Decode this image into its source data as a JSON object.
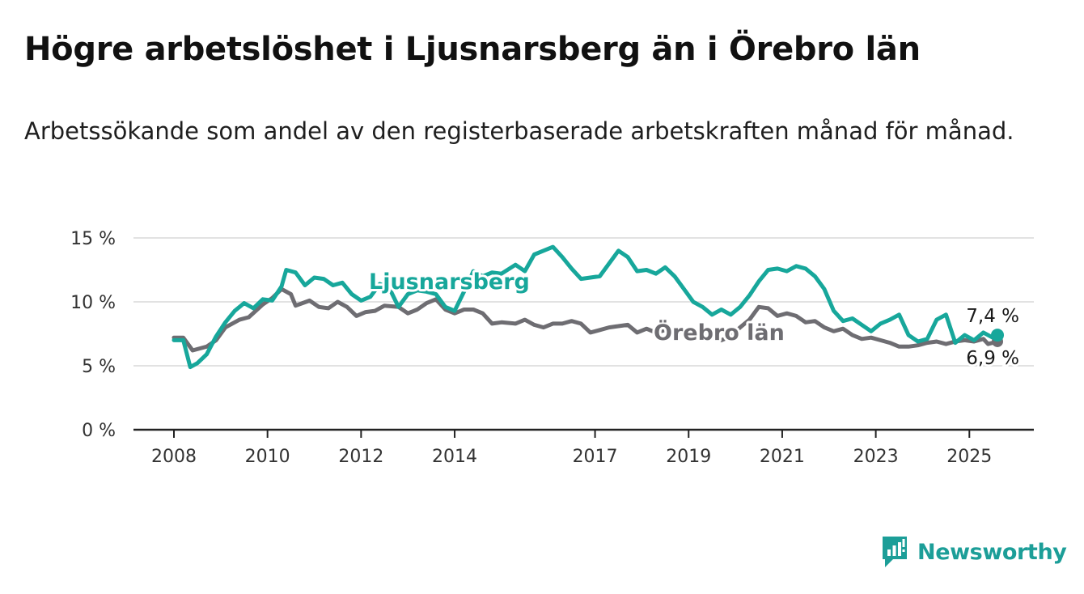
{
  "title": "Högre arbetslöshet i Ljusnarsberg än i Örebro län",
  "subtitle": "Arbetssökande som andel av den registerbaserade arbetskraften månad för månad.",
  "brand": {
    "name": "Newsworthy",
    "icon": "bar-chart-icon",
    "color": "#1c9e98"
  },
  "chart_data": {
    "type": "line",
    "ylim": [
      0,
      15
    ],
    "y_ticks": [
      0,
      5,
      10,
      15
    ],
    "y_tick_labels": [
      "0 %",
      "5 %",
      "10 %",
      "15 %"
    ],
    "x_range": [
      2008.0,
      2025.6
    ],
    "x_ticks": [
      2008,
      2010,
      2012,
      2014,
      2017,
      2019,
      2021,
      2023,
      2025
    ],
    "x_tick_labels": [
      "2008",
      "2010",
      "2012",
      "2014",
      "2017",
      "2019",
      "2021",
      "2023",
      "2025"
    ],
    "grid": true,
    "series": [
      {
        "name": "Örebro län",
        "color": "#6e6d72",
        "end_label": "6,9 %",
        "points": [
          [
            2008.0,
            7.2
          ],
          [
            2008.2,
            7.2
          ],
          [
            2008.4,
            6.2
          ],
          [
            2008.7,
            6.5
          ],
          [
            2008.9,
            7.0
          ],
          [
            2009.1,
            8.0
          ],
          [
            2009.4,
            8.6
          ],
          [
            2009.6,
            8.8
          ],
          [
            2009.9,
            9.8
          ],
          [
            2010.1,
            10.3
          ],
          [
            2010.3,
            11.0
          ],
          [
            2010.5,
            10.6
          ],
          [
            2010.6,
            9.7
          ],
          [
            2010.9,
            10.1
          ],
          [
            2011.1,
            9.6
          ],
          [
            2011.3,
            9.5
          ],
          [
            2011.5,
            10.0
          ],
          [
            2011.7,
            9.6
          ],
          [
            2011.9,
            8.9
          ],
          [
            2012.1,
            9.2
          ],
          [
            2012.3,
            9.3
          ],
          [
            2012.5,
            9.7
          ],
          [
            2012.8,
            9.6
          ],
          [
            2013.0,
            9.1
          ],
          [
            2013.2,
            9.4
          ],
          [
            2013.4,
            9.9
          ],
          [
            2013.6,
            10.2
          ],
          [
            2013.8,
            9.4
          ],
          [
            2014.0,
            9.1
          ],
          [
            2014.2,
            9.4
          ],
          [
            2014.4,
            9.4
          ],
          [
            2014.6,
            9.1
          ],
          [
            2014.8,
            8.3
          ],
          [
            2015.0,
            8.4
          ],
          [
            2015.3,
            8.3
          ],
          [
            2015.5,
            8.6
          ],
          [
            2015.7,
            8.2
          ],
          [
            2015.9,
            8.0
          ],
          [
            2016.1,
            8.3
          ],
          [
            2016.3,
            8.3
          ],
          [
            2016.5,
            8.5
          ],
          [
            2016.7,
            8.3
          ],
          [
            2016.9,
            7.6
          ],
          [
            2017.1,
            7.8
          ],
          [
            2017.3,
            8.0
          ],
          [
            2017.5,
            8.1
          ],
          [
            2017.7,
            8.2
          ],
          [
            2017.9,
            7.6
          ],
          [
            2018.1,
            7.9
          ],
          [
            2018.3,
            7.6
          ],
          [
            2018.5,
            7.8
          ],
          [
            2018.7,
            7.5
          ],
          [
            2018.9,
            7.8
          ],
          [
            2019.1,
            7.6
          ],
          [
            2019.3,
            7.2
          ],
          [
            2019.5,
            7.4
          ],
          [
            2019.7,
            7.0
          ],
          [
            2019.9,
            7.3
          ],
          [
            2020.1,
            8.0
          ],
          [
            2020.3,
            8.6
          ],
          [
            2020.5,
            9.6
          ],
          [
            2020.7,
            9.5
          ],
          [
            2020.9,
            8.9
          ],
          [
            2021.1,
            9.1
          ],
          [
            2021.3,
            8.9
          ],
          [
            2021.5,
            8.4
          ],
          [
            2021.7,
            8.5
          ],
          [
            2021.9,
            8.0
          ],
          [
            2022.1,
            7.7
          ],
          [
            2022.3,
            7.9
          ],
          [
            2022.5,
            7.4
          ],
          [
            2022.7,
            7.1
          ],
          [
            2022.9,
            7.2
          ],
          [
            2023.1,
            7.0
          ],
          [
            2023.3,
            6.8
          ],
          [
            2023.5,
            6.5
          ],
          [
            2023.7,
            6.5
          ],
          [
            2023.9,
            6.6
          ],
          [
            2024.1,
            6.8
          ],
          [
            2024.3,
            6.9
          ],
          [
            2024.5,
            6.7
          ],
          [
            2024.7,
            6.9
          ],
          [
            2024.9,
            7.0
          ],
          [
            2025.1,
            6.9
          ],
          [
            2025.3,
            7.1
          ],
          [
            2025.4,
            6.7
          ],
          [
            2025.6,
            6.9
          ]
        ]
      },
      {
        "name": "Ljusnarsberg",
        "color": "#17a79b",
        "end_label": "7,4 %",
        "points": [
          [
            2008.0,
            7.0
          ],
          [
            2008.2,
            7.0
          ],
          [
            2008.35,
            4.9
          ],
          [
            2008.5,
            5.2
          ],
          [
            2008.7,
            5.9
          ],
          [
            2008.9,
            7.3
          ],
          [
            2009.1,
            8.4
          ],
          [
            2009.3,
            9.3
          ],
          [
            2009.5,
            9.9
          ],
          [
            2009.7,
            9.5
          ],
          [
            2009.9,
            10.2
          ],
          [
            2010.1,
            10.1
          ],
          [
            2010.3,
            11.2
          ],
          [
            2010.4,
            12.5
          ],
          [
            2010.6,
            12.3
          ],
          [
            2010.8,
            11.3
          ],
          [
            2011.0,
            11.9
          ],
          [
            2011.2,
            11.8
          ],
          [
            2011.4,
            11.3
          ],
          [
            2011.6,
            11.5
          ],
          [
            2011.8,
            10.6
          ],
          [
            2012.0,
            10.1
          ],
          [
            2012.2,
            10.4
          ],
          [
            2012.4,
            11.4
          ],
          [
            2012.6,
            11.1
          ],
          [
            2012.8,
            9.6
          ],
          [
            2013.0,
            10.6
          ],
          [
            2013.2,
            10.9
          ],
          [
            2013.4,
            10.8
          ],
          [
            2013.6,
            10.6
          ],
          [
            2013.8,
            9.6
          ],
          [
            2014.0,
            9.3
          ],
          [
            2014.2,
            10.8
          ],
          [
            2014.4,
            12.4
          ],
          [
            2014.6,
            12.0
          ],
          [
            2014.8,
            12.3
          ],
          [
            2015.0,
            12.2
          ],
          [
            2015.3,
            12.9
          ],
          [
            2015.5,
            12.4
          ],
          [
            2015.7,
            13.7
          ],
          [
            2015.9,
            14.0
          ],
          [
            2016.1,
            14.3
          ],
          [
            2016.3,
            13.5
          ],
          [
            2016.5,
            12.6
          ],
          [
            2016.7,
            11.8
          ],
          [
            2016.9,
            11.9
          ],
          [
            2017.1,
            12.0
          ],
          [
            2017.3,
            13.0
          ],
          [
            2017.5,
            14.0
          ],
          [
            2017.7,
            13.5
          ],
          [
            2017.9,
            12.4
          ],
          [
            2018.1,
            12.5
          ],
          [
            2018.3,
            12.2
          ],
          [
            2018.5,
            12.7
          ],
          [
            2018.7,
            12.0
          ],
          [
            2018.9,
            11.0
          ],
          [
            2019.1,
            10.0
          ],
          [
            2019.3,
            9.6
          ],
          [
            2019.5,
            9.0
          ],
          [
            2019.7,
            9.4
          ],
          [
            2019.9,
            9.0
          ],
          [
            2020.1,
            9.6
          ],
          [
            2020.3,
            10.5
          ],
          [
            2020.5,
            11.6
          ],
          [
            2020.7,
            12.5
          ],
          [
            2020.9,
            12.6
          ],
          [
            2021.1,
            12.4
          ],
          [
            2021.3,
            12.8
          ],
          [
            2021.5,
            12.6
          ],
          [
            2021.7,
            12.0
          ],
          [
            2021.9,
            11.0
          ],
          [
            2022.1,
            9.3
          ],
          [
            2022.3,
            8.5
          ],
          [
            2022.5,
            8.7
          ],
          [
            2022.7,
            8.2
          ],
          [
            2022.9,
            7.7
          ],
          [
            2023.1,
            8.3
          ],
          [
            2023.3,
            8.6
          ],
          [
            2023.5,
            9.0
          ],
          [
            2023.7,
            7.4
          ],
          [
            2023.9,
            6.9
          ],
          [
            2024.1,
            7.1
          ],
          [
            2024.3,
            8.6
          ],
          [
            2024.5,
            9.0
          ],
          [
            2024.7,
            6.8
          ],
          [
            2024.9,
            7.4
          ],
          [
            2025.1,
            7.0
          ],
          [
            2025.3,
            7.6
          ],
          [
            2025.5,
            7.2
          ],
          [
            2025.6,
            7.4
          ]
        ]
      }
    ]
  }
}
